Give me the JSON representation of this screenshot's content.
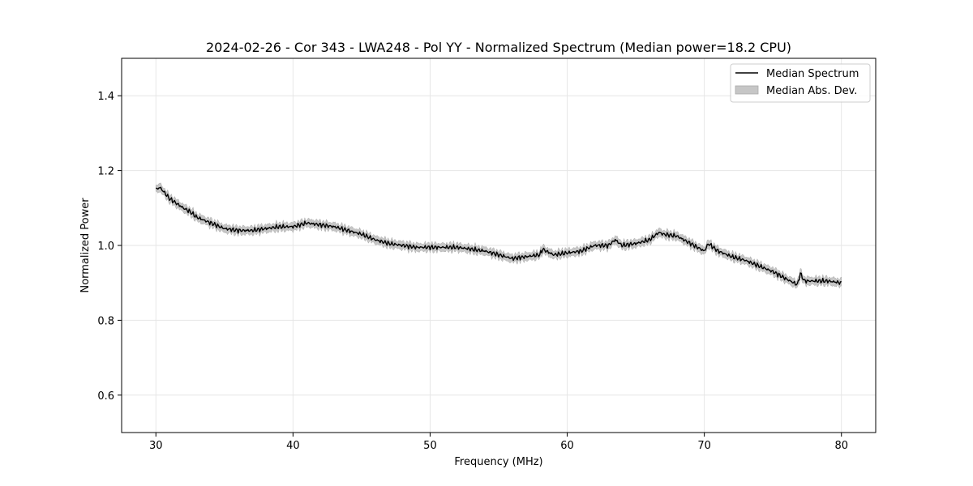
{
  "chart_data": {
    "type": "line",
    "title": "2024-02-26 - Cor 343 - LWA248 - Pol YY - Normalized Spectrum (Median power=18.2 CPU)",
    "xlabel": "Frequency (MHz)",
    "ylabel": "Normalized Power",
    "xlim": [
      27.5,
      82.5
    ],
    "ylim": [
      0.5,
      1.5
    ],
    "xticks": [
      30,
      40,
      50,
      60,
      70,
      80
    ],
    "yticks": [
      0.6,
      0.8,
      1.0,
      1.2,
      1.4
    ],
    "xtick_labels": [
      "30",
      "40",
      "50",
      "60",
      "70",
      "80"
    ],
    "ytick_labels": [
      "0.6",
      "0.8",
      "1.0",
      "1.2",
      "1.4"
    ],
    "grid": true,
    "legend_position": "top-right",
    "legend": [
      "Median Spectrum",
      "Median Abs. Dev."
    ],
    "series": [
      {
        "name": "Median Spectrum",
        "color": "#000000",
        "x": [
          30,
          30.3,
          31,
          32,
          32.5,
          33,
          34,
          35,
          36,
          37,
          38,
          39,
          40,
          41,
          42,
          43,
          44,
          45,
          46,
          47,
          48,
          49,
          50,
          51,
          52,
          53,
          54,
          55,
          56,
          57,
          58,
          58.2,
          59,
          60,
          61,
          62,
          63,
          63.5,
          64,
          65,
          66,
          66.7,
          67,
          68,
          69,
          70,
          70.3,
          71,
          72,
          73,
          74,
          75,
          76,
          76.8,
          77,
          77.3,
          78,
          79,
          80
        ],
        "y": [
          1.15,
          1.155,
          1.125,
          1.1,
          1.09,
          1.075,
          1.06,
          1.045,
          1.04,
          1.04,
          1.045,
          1.05,
          1.05,
          1.06,
          1.055,
          1.05,
          1.04,
          1.03,
          1.015,
          1.005,
          1.0,
          0.995,
          0.995,
          0.995,
          0.995,
          0.99,
          0.985,
          0.975,
          0.965,
          0.97,
          0.975,
          0.99,
          0.975,
          0.98,
          0.985,
          1.0,
          1.0,
          1.015,
          1.0,
          1.005,
          1.015,
          1.035,
          1.03,
          1.025,
          1.005,
          0.985,
          1.005,
          0.985,
          0.97,
          0.96,
          0.945,
          0.93,
          0.91,
          0.895,
          0.925,
          0.905,
          0.905,
          0.905,
          0.9
        ]
      },
      {
        "name": "Median Abs. Dev.",
        "type": "band",
        "color": "#c6c6c6",
        "band_halfwidth": 0.008
      }
    ]
  }
}
